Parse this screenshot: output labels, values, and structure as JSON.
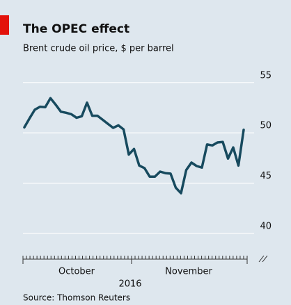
{
  "chart_data": {
    "type": "line",
    "title": "The OPEC effect",
    "subtitle": "Brent crude oil price, $ per barrel",
    "source": "Source: Thomson Reuters",
    "month_labels": [
      "October",
      "November"
    ],
    "year_label": "2016",
    "categories": [
      null,
      null,
      null,
      null,
      null,
      null,
      null,
      null,
      null,
      null,
      null,
      null,
      null,
      null,
      null,
      null,
      null,
      null,
      null,
      null,
      null,
      null,
      null,
      null,
      null,
      null,
      null,
      null,
      null,
      null,
      null,
      null,
      null,
      null,
      null,
      null,
      null,
      null,
      null,
      null,
      null,
      null,
      null
    ],
    "values": [
      50.55,
      51.45,
      52.3,
      52.6,
      52.55,
      53.45,
      52.8,
      52.1,
      52.0,
      51.85,
      51.5,
      51.65,
      53.0,
      51.7,
      51.7,
      51.3,
      50.9,
      50.5,
      50.75,
      50.35,
      47.85,
      48.4,
      46.75,
      46.5,
      45.65,
      45.65,
      46.15,
      46.0,
      45.95,
      44.55,
      44.0,
      46.3,
      47.05,
      46.7,
      46.55,
      48.85,
      48.75,
      49.05,
      49.1,
      47.45,
      48.55,
      46.75,
      50.3
    ],
    "color": "#174a5e",
    "ylim": [
      37.45,
      56.3
    ],
    "yticks": [
      40,
      45,
      50,
      55
    ],
    "grid": true
  }
}
